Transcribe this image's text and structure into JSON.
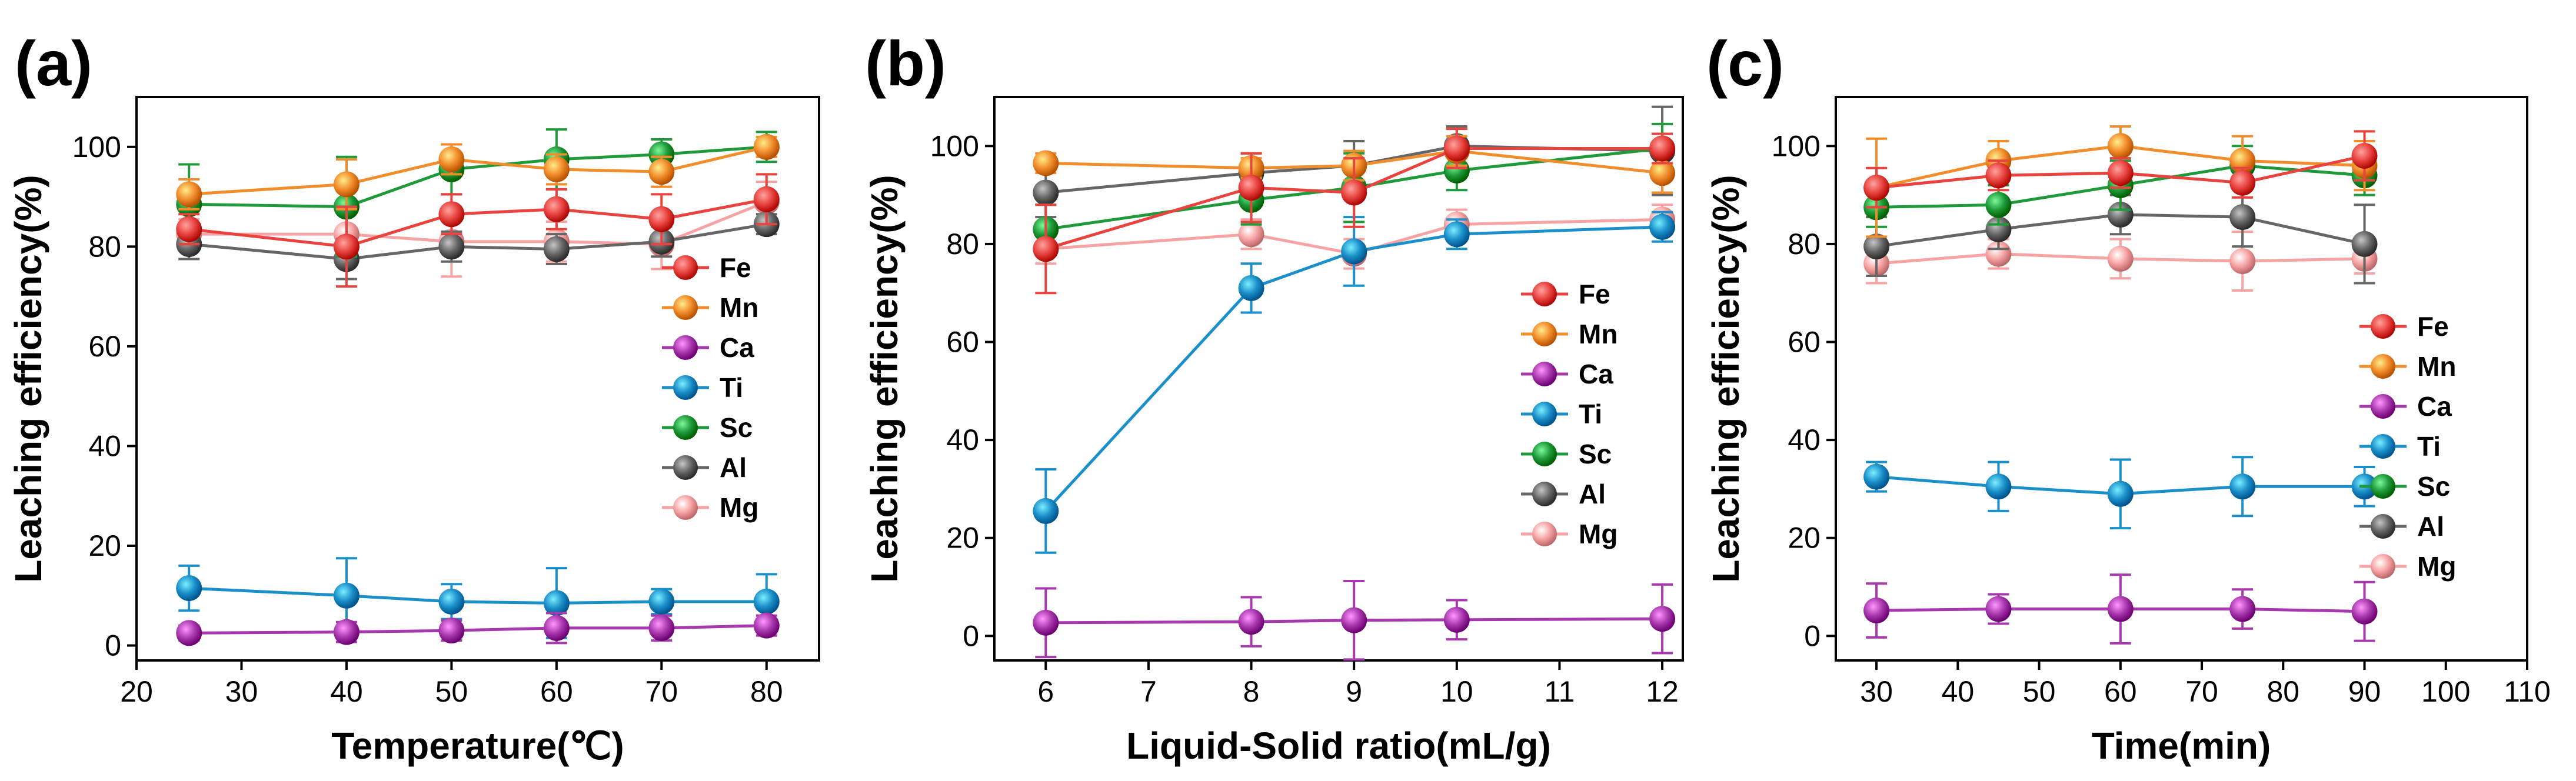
{
  "chart_data": [
    {
      "type": "line",
      "panel_label": "(a)",
      "xlabel": "Temperature(℃)",
      "ylabel": "Leaching efficiency(%)",
      "xlim": [
        20,
        85
      ],
      "ylim": [
        -3,
        110
      ],
      "xticks": [
        "20",
        "30",
        "40",
        "50",
        "60",
        "70",
        "80"
      ],
      "yticks": [
        "0",
        "20",
        "40",
        "60",
        "80",
        "100"
      ],
      "x": [
        25,
        40,
        50,
        60,
        70,
        80
      ],
      "legend_position": "center-right",
      "series": [
        {
          "name": "Fe",
          "values": [
            83.5,
            80,
            86.5,
            87.5,
            85.5,
            89.5
          ],
          "errors": [
            3,
            8,
            4,
            4,
            5,
            5
          ]
        },
        {
          "name": "Mn",
          "values": [
            90.5,
            92.5,
            97.5,
            95.5,
            95,
            100
          ],
          "errors": [
            3,
            5,
            3,
            3,
            3,
            2
          ]
        },
        {
          "name": "Ca",
          "values": [
            2.5,
            2.7,
            3,
            3.5,
            3.5,
            4
          ],
          "errors": [
            1.5,
            2,
            2,
            3,
            2.5,
            2
          ]
        },
        {
          "name": "Ti",
          "values": [
            11.5,
            10,
            8.8,
            8.5,
            8.8,
            8.8
          ],
          "errors": [
            4.5,
            7.5,
            3.5,
            7,
            2.5,
            5.5
          ]
        },
        {
          "name": "Sc",
          "values": [
            88.5,
            88,
            95.5,
            97.5,
            98.5,
            100
          ],
          "errors": [
            8,
            10,
            5,
            6,
            3,
            3
          ]
        },
        {
          "name": "Al",
          "values": [
            80.5,
            77.5,
            80,
            79.5,
            81,
            84.5
          ],
          "errors": [
            3,
            4,
            3,
            3,
            3,
            2
          ]
        },
        {
          "name": "Mg",
          "values": [
            82.5,
            82.5,
            81,
            81,
            80.5,
            89
          ],
          "errors": [
            3,
            5,
            7,
            4,
            5,
            4
          ]
        }
      ]
    },
    {
      "type": "line",
      "panel_label": "(b)",
      "xlabel": "Liquid-Solid ratio(mL/g)",
      "ylabel": "Leaching efficiency(%)",
      "xlim": [
        5.5,
        12.2
      ],
      "ylim": [
        -5,
        110
      ],
      "xticks": [
        "6",
        "7",
        "8",
        "9",
        "10",
        "11",
        "12"
      ],
      "yticks": [
        "0",
        "20",
        "40",
        "60",
        "80",
        "100"
      ],
      "x": [
        6,
        8,
        9,
        10,
        12
      ],
      "legend_position": "center-right",
      "series": [
        {
          "name": "Fe",
          "values": [
            79,
            91.5,
            90.5,
            99.5,
            99.5
          ],
          "errors": [
            9,
            7,
            7,
            4,
            3
          ]
        },
        {
          "name": "Mn",
          "values": [
            96.5,
            95.5,
            96,
            99,
            94.5
          ],
          "errors": [
            2,
            2,
            3,
            3,
            4
          ]
        },
        {
          "name": "Ca",
          "values": [
            2.7,
            2.9,
            3.2,
            3.3,
            3.5
          ],
          "errors": [
            7,
            5,
            8,
            4,
            7
          ]
        },
        {
          "name": "Ti",
          "values": [
            25.5,
            71,
            78.5,
            82,
            83.5
          ],
          "errors": [
            8.5,
            5,
            7,
            3,
            3
          ]
        },
        {
          "name": "Sc",
          "values": [
            83,
            89,
            91.5,
            95,
            99.5
          ],
          "errors": [
            5,
            5,
            7,
            4,
            5
          ]
        },
        {
          "name": "Al",
          "values": [
            90.5,
            94.5,
            96,
            100,
            99
          ],
          "errors": [
            5,
            4,
            5,
            4,
            9
          ]
        },
        {
          "name": "Mg",
          "values": [
            79,
            82,
            78,
            84,
            85
          ],
          "errors": [
            3,
            3,
            3,
            3,
            3
          ]
        }
      ]
    },
    {
      "type": "line",
      "panel_label": "(c)",
      "xlabel": "Time(min)",
      "ylabel": "Leaching efficiency(%)",
      "xlim": [
        25,
        110
      ],
      "ylim": [
        -5,
        110
      ],
      "xticks": [
        "30",
        "40",
        "50",
        "60",
        "70",
        "80",
        "90",
        "100",
        "110"
      ],
      "yticks": [
        "0",
        "20",
        "40",
        "60",
        "80",
        "100"
      ],
      "x": [
        30,
        45,
        60,
        75,
        90
      ],
      "legend_position": "center-right",
      "series": [
        {
          "name": "Fe",
          "values": [
            91.5,
            94,
            94.5,
            92.5,
            98
          ],
          "errors": [
            4,
            3,
            3,
            3,
            5
          ]
        },
        {
          "name": "Mn",
          "values": [
            91.5,
            97,
            100,
            97,
            96
          ],
          "errors": [
            10,
            4,
            4,
            5,
            5
          ]
        },
        {
          "name": "Ca",
          "values": [
            5.2,
            5.5,
            5.5,
            5.5,
            5
          ],
          "errors": [
            5.5,
            3,
            7,
            4,
            6
          ]
        },
        {
          "name": "Ti",
          "values": [
            32.5,
            30.5,
            29,
            30.5,
            30.5
          ],
          "errors": [
            3,
            5,
            7,
            6,
            4
          ]
        },
        {
          "name": "Sc",
          "values": [
            87.5,
            88,
            92,
            96,
            94
          ],
          "errors": [
            4,
            4,
            5,
            4,
            4
          ]
        },
        {
          "name": "Al",
          "values": [
            79.5,
            83,
            86,
            85.5,
            80
          ],
          "errors": [
            6,
            4,
            4,
            6,
            8
          ]
        },
        {
          "name": "Mg",
          "values": [
            76,
            78,
            77,
            76.5,
            77
          ],
          "errors": [
            4,
            3,
            4,
            6,
            3
          ]
        }
      ]
    }
  ],
  "series_colors": {
    "Fe": "#e8433f",
    "Mn": "#f28d2c",
    "Ca": "#a838ad",
    "Ti": "#1b8fc9",
    "Sc": "#1f9a3a",
    "Al": "#666666",
    "Mg": "#f7a3a3"
  }
}
